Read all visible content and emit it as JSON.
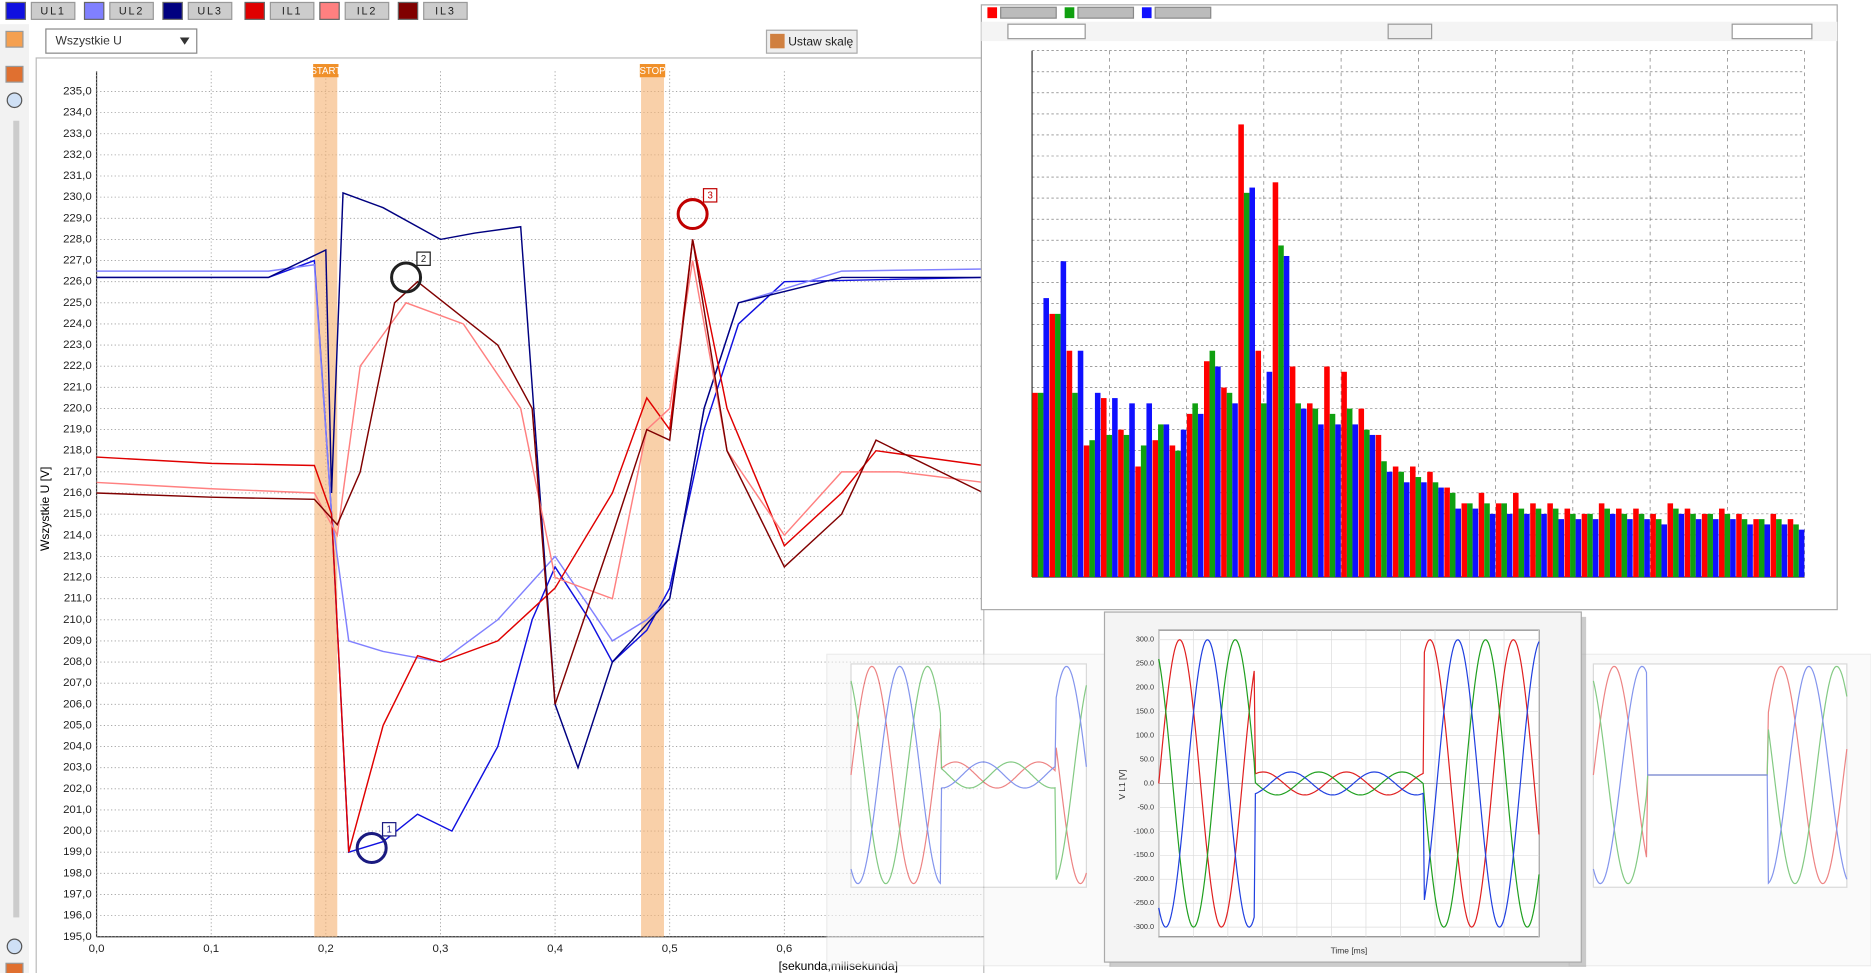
{
  "dropdown": "Wszystkie U",
  "button": "Ustaw skalę",
  "chart_data": [
    {
      "type": "line",
      "ylabel": "Wszystkie U [V]",
      "xlabel": "[sekunda,milisekunda]",
      "xlim": [
        0,
        0.774
      ],
      "ylim": [
        195,
        235.5
      ],
      "xticks": [
        {
          "value": 0,
          "label": "0,0"
        },
        {
          "value": 0.1,
          "label": "0,1"
        },
        {
          "value": 0.2,
          "label": "0,2"
        },
        {
          "value": 0.3,
          "label": "0,3"
        },
        {
          "value": 0.4,
          "label": "0,4"
        },
        {
          "value": 0.5,
          "label": "0,5"
        },
        {
          "value": 0.6,
          "label": "0,6"
        }
      ],
      "yticks": [
        {
          "value": 195,
          "label": "195,0"
        },
        {
          "value": 196,
          "label": "196,0"
        },
        {
          "value": 197,
          "label": "197,0"
        },
        {
          "value": 198,
          "label": "198,0"
        },
        {
          "value": 199,
          "label": "199,0"
        },
        {
          "value": 200,
          "label": "200,0"
        },
        {
          "value": 201,
          "label": "201,0"
        },
        {
          "value": 202,
          "label": "202,0"
        },
        {
          "value": 203,
          "label": "203,0"
        },
        {
          "value": 204,
          "label": "204,0"
        },
        {
          "value": 205,
          "label": "205,0"
        },
        {
          "value": 206,
          "label": "206,0"
        },
        {
          "value": 207,
          "label": "207,0"
        },
        {
          "value": 208,
          "label": "208,0"
        },
        {
          "value": 209,
          "label": "209,0"
        },
        {
          "value": 210,
          "label": "210,0"
        },
        {
          "value": 211,
          "label": "211,0"
        },
        {
          "value": 212,
          "label": "212,0"
        },
        {
          "value": 213,
          "label": "213,0"
        },
        {
          "value": 214,
          "label": "214,0"
        },
        {
          "value": 215,
          "label": "215,0"
        },
        {
          "value": 216,
          "label": "216,0"
        },
        {
          "value": 217,
          "label": "217,0"
        },
        {
          "value": 218,
          "label": "218,0"
        },
        {
          "value": 219,
          "label": "219,0"
        },
        {
          "value": 220,
          "label": "220,0"
        },
        {
          "value": 221,
          "label": "221,0"
        },
        {
          "value": 222,
          "label": "222,0"
        },
        {
          "value": 223,
          "label": "223,0"
        },
        {
          "value": 224,
          "label": "224,0"
        },
        {
          "value": 225,
          "label": "225,0"
        },
        {
          "value": 226,
          "label": "226,0"
        },
        {
          "value": 227,
          "label": "227,0"
        },
        {
          "value": 228,
          "label": "228,0"
        },
        {
          "value": 229,
          "label": "229,0"
        },
        {
          "value": 230,
          "label": "230,0"
        },
        {
          "value": 231,
          "label": "231,0"
        },
        {
          "value": 232,
          "label": "232,0"
        },
        {
          "value": 233,
          "label": "233,0"
        },
        {
          "value": 234,
          "label": "234,0"
        },
        {
          "value": 235,
          "label": "235,0"
        }
      ],
      "grid": true,
      "series": [
        {
          "name": "UL1",
          "color": "#1010e0",
          "x": [
            0,
            0.15,
            0.19,
            0.205,
            0.22,
            0.25,
            0.28,
            0.31,
            0.35,
            0.38,
            0.4,
            0.43,
            0.45,
            0.48,
            0.5,
            0.53,
            0.56,
            0.6,
            0.774
          ],
          "values": [
            226.2,
            226.2,
            227,
            215,
            199,
            199.5,
            200.8,
            200,
            204,
            210,
            212.5,
            210,
            208,
            209.5,
            211.5,
            219,
            224,
            226,
            226.2
          ]
        },
        {
          "name": "UL2",
          "color": "#8080ff",
          "x": [
            0,
            0.15,
            0.19,
            0.205,
            0.22,
            0.25,
            0.3,
            0.35,
            0.4,
            0.45,
            0.48,
            0.5,
            0.53,
            0.56,
            0.65,
            0.774
          ],
          "values": [
            226.5,
            226.5,
            226.8,
            215,
            209,
            208.5,
            208,
            210,
            213,
            209,
            210,
            211,
            220,
            225,
            226.5,
            226.6
          ]
        },
        {
          "name": "UL3",
          "color": "#000080",
          "x": [
            0,
            0.15,
            0.2,
            0.205,
            0.215,
            0.25,
            0.3,
            0.33,
            0.37,
            0.4,
            0.42,
            0.45,
            0.5,
            0.53,
            0.56,
            0.65,
            0.774
          ],
          "values": [
            226.2,
            226.2,
            227.5,
            216,
            230.2,
            229.5,
            228,
            228.3,
            228.6,
            206,
            203,
            208,
            211,
            220,
            225,
            226.2,
            226.2
          ]
        },
        {
          "name": "IL1",
          "color": "#e00000",
          "x": [
            0,
            0.1,
            0.19,
            0.205,
            0.22,
            0.25,
            0.28,
            0.3,
            0.35,
            0.38,
            0.4,
            0.45,
            0.48,
            0.5,
            0.52,
            0.55,
            0.6,
            0.65,
            0.68,
            0.774
          ],
          "values": [
            217.7,
            217.4,
            217.3,
            215,
            199,
            205,
            208.3,
            208,
            209,
            210.5,
            211.5,
            216,
            220.5,
            219,
            228,
            220,
            213.5,
            216,
            218,
            217.3
          ]
        },
        {
          "name": "IL2",
          "color": "#ff8080",
          "x": [
            0,
            0.1,
            0.19,
            0.21,
            0.23,
            0.27,
            0.32,
            0.37,
            0.4,
            0.45,
            0.48,
            0.5,
            0.52,
            0.55,
            0.6,
            0.65,
            0.7,
            0.774
          ],
          "values": [
            216.5,
            216.2,
            216,
            214,
            222,
            225,
            224,
            220,
            212,
            211,
            219,
            220,
            227,
            218,
            214,
            217,
            217,
            216.5
          ]
        },
        {
          "name": "IL3",
          "color": "#800000",
          "x": [
            0,
            0.1,
            0.19,
            0.21,
            0.23,
            0.26,
            0.28,
            0.35,
            0.38,
            0.4,
            0.45,
            0.48,
            0.5,
            0.52,
            0.55,
            0.6,
            0.65,
            0.68,
            0.774
          ],
          "values": [
            216,
            215.8,
            215.7,
            214.5,
            217,
            225,
            226,
            223,
            220,
            206,
            214,
            219,
            218.5,
            228,
            218,
            212.5,
            215,
            218.5,
            216
          ]
        }
      ],
      "bands": [
        {
          "label": "START",
          "x": [
            0.19,
            0.21
          ]
        },
        {
          "label": "STOP",
          "x": [
            0.475,
            0.495
          ]
        }
      ],
      "markers": [
        {
          "label": "1",
          "x": 0.24,
          "y": 199.2,
          "color": "#1a1a80"
        },
        {
          "label": "2",
          "x": 0.27,
          "y": 226.2,
          "color": "#202020"
        },
        {
          "label": "3",
          "x": 0.52,
          "y": 229.2,
          "color": "#c00000"
        }
      ]
    },
    {
      "type": "bar",
      "ylim": [
        0,
        100
      ],
      "series": [
        {
          "color": "#ff0000",
          "values": [
            35,
            50,
            43,
            25,
            34,
            28,
            21,
            26,
            25,
            31,
            41,
            36,
            86,
            43,
            75,
            40,
            33,
            40,
            39,
            32,
            27,
            21,
            21,
            20,
            17,
            14,
            16,
            14,
            16,
            14,
            14,
            13,
            12,
            14,
            13,
            13,
            12,
            14,
            13,
            12,
            13,
            12,
            11,
            12,
            11
          ]
        },
        {
          "color": "#10a010",
          "values": [
            35,
            50,
            35,
            26,
            27,
            27,
            25,
            29,
            24,
            33,
            43,
            35,
            73,
            33,
            63,
            33,
            32,
            31,
            32,
            28,
            22,
            20,
            19,
            18,
            16,
            14,
            14,
            14,
            13,
            13,
            13,
            12,
            12,
            13,
            12,
            12,
            11,
            13,
            12,
            12,
            12,
            11,
            11,
            11,
            10
          ]
        },
        {
          "color": "#1010ff",
          "values": [
            53,
            60,
            43,
            35,
            34,
            33,
            33,
            29,
            28,
            31,
            40,
            33,
            74,
            39,
            61,
            32,
            29,
            29,
            29,
            27,
            20,
            18,
            18,
            17,
            13,
            13,
            12,
            12,
            12,
            12,
            11,
            11,
            11,
            12,
            11,
            11,
            10,
            12,
            11,
            11,
            11,
            10,
            10,
            10,
            9
          ]
        }
      ]
    },
    {
      "type": "oscilloscope",
      "xlabel": "Time [ms]",
      "ylabel": "V L1 [V]",
      "ylim": [
        -320,
        320
      ],
      "yticks": [
        {
          "value": 300,
          "label": "300.0"
        },
        {
          "value": 250,
          "label": "250.0"
        },
        {
          "value": 200,
          "label": "200.0"
        },
        {
          "value": 150,
          "label": "150.0"
        },
        {
          "value": 100,
          "label": "100.0"
        },
        {
          "value": 50,
          "label": "50.0"
        },
        {
          "value": 0,
          "label": "0.0"
        },
        {
          "value": -50,
          "label": "-50.0"
        },
        {
          "value": -100,
          "label": "-100.0"
        },
        {
          "value": -150,
          "label": "-150.0"
        },
        {
          "value": -200,
          "label": "-200.0"
        },
        {
          "value": -250,
          "label": "-250.0"
        },
        {
          "value": -300,
          "label": "-300.0"
        }
      ]
    }
  ]
}
